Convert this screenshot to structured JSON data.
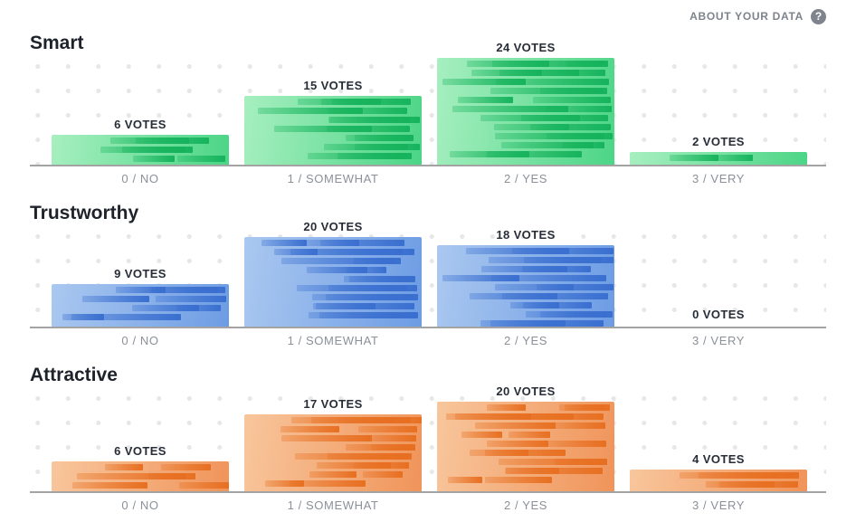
{
  "header": {
    "about_label": "ABOUT YOUR DATA",
    "help_glyph": "?",
    "help_icon": "question-mark-icon"
  },
  "chart_data": [
    {
      "type": "bar",
      "title": "Smart",
      "categories": [
        "0 / NO",
        "1 / SOMEWHAT",
        "2 / YES",
        "3 / VERY"
      ],
      "values": [
        6,
        15,
        24,
        2
      ],
      "value_labels": [
        "6 VOTES",
        "15 VOTES",
        "24 VOTES",
        "2 VOTES"
      ],
      "colors": {
        "bar_light": "#a7efc0",
        "bar_dark": "#4cd586",
        "segment": "#16b35c"
      }
    },
    {
      "type": "bar",
      "title": "Trustworthy",
      "categories": [
        "0 / NO",
        "1 / SOMEWHAT",
        "2 / YES",
        "3 / VERY"
      ],
      "values": [
        9,
        20,
        18,
        0
      ],
      "value_labels": [
        "9 VOTES",
        "20 VOTES",
        "18 VOTES",
        "0 VOTES"
      ],
      "colors": {
        "bar_light": "#aac8f0",
        "bar_dark": "#6d9ce4",
        "segment": "#3a6fd0"
      }
    },
    {
      "type": "bar",
      "title": "Attractive",
      "categories": [
        "0 / NO",
        "1 / SOMEWHAT",
        "2 / YES",
        "3 / VERY"
      ],
      "values": [
        6,
        17,
        20,
        4
      ],
      "value_labels": [
        "6 VOTES",
        "17 VOTES",
        "20 VOTES",
        "4 VOTES"
      ],
      "colors": {
        "bar_light": "#f8c69c",
        "bar_dark": "#f0945a",
        "segment": "#e76f21"
      }
    }
  ]
}
